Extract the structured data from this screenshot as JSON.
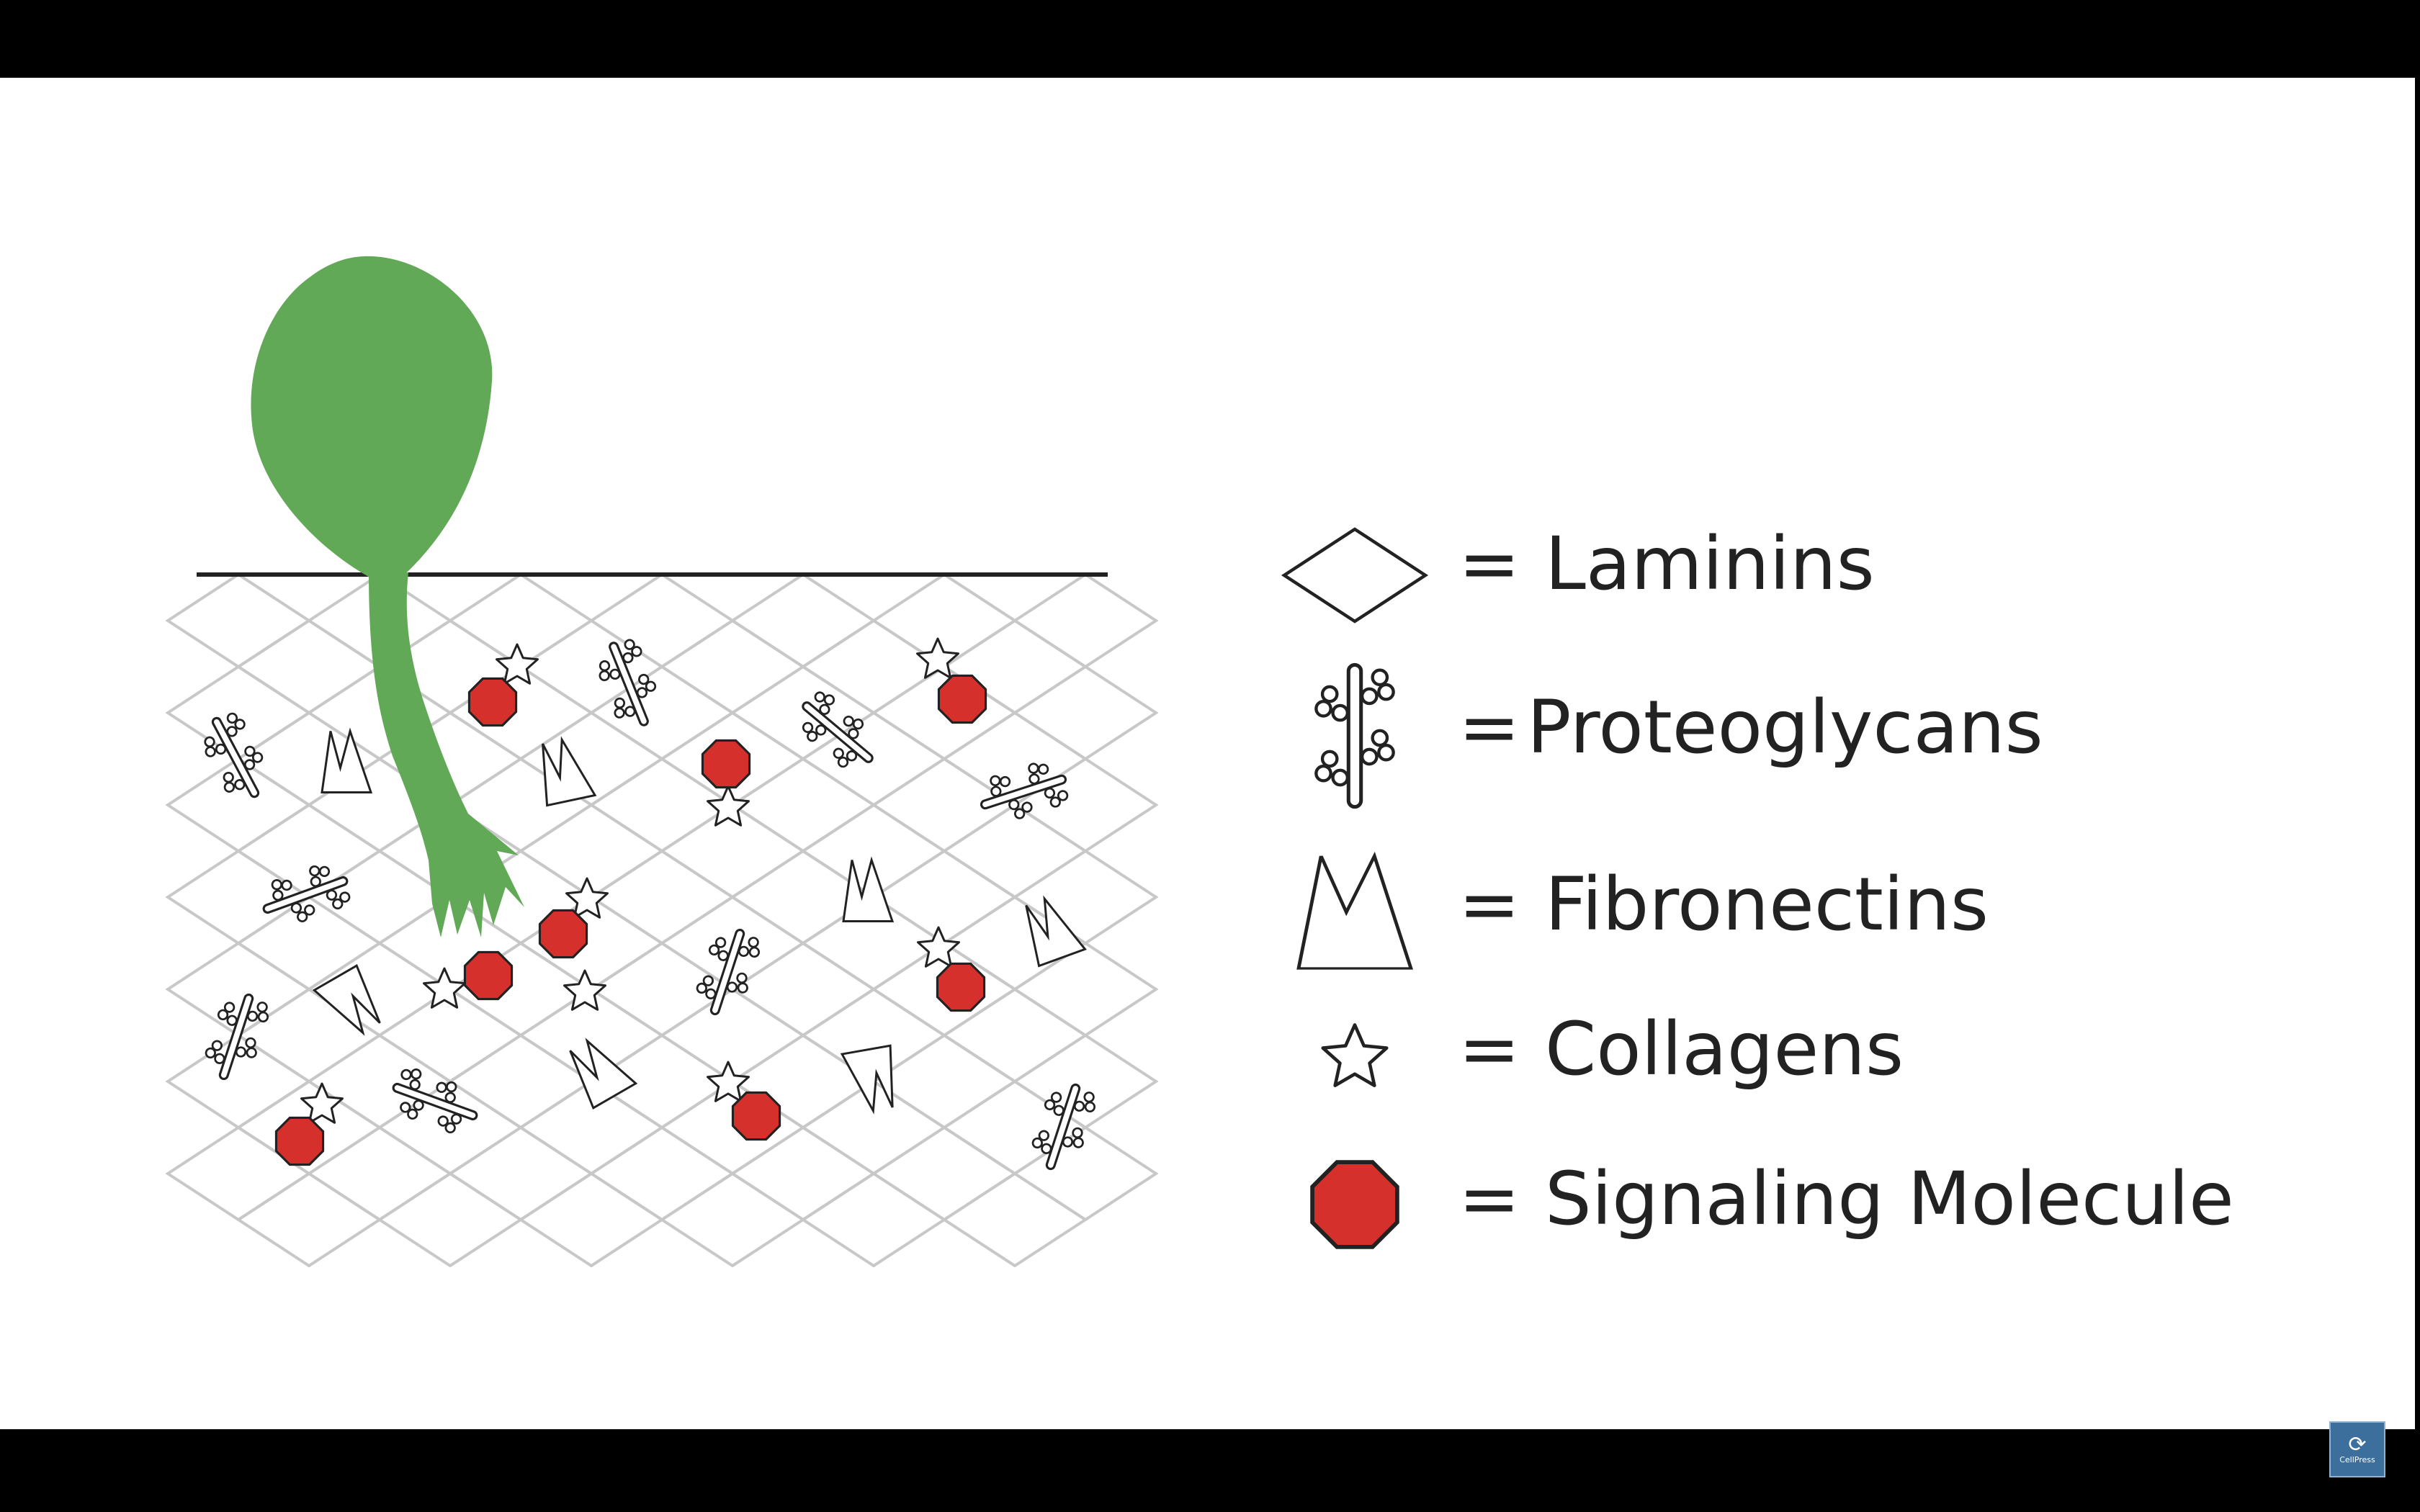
{
  "legend": {
    "equals": "=",
    "items": [
      {
        "label": "Laminins",
        "icon": "laminin-diamond-icon"
      },
      {
        "label": "Proteoglycans",
        "icon": "proteoglycan-icon"
      },
      {
        "label": "Fibronectins",
        "icon": "fibronectin-icon"
      },
      {
        "label": "Collagens",
        "icon": "collagen-star-icon"
      },
      {
        "label": "Signaling Molecule",
        "icon": "signaling-molecule-octagon-icon"
      }
    ]
  },
  "colors": {
    "cell": "#62a957",
    "signaling": "#d6302c",
    "mesh": "#c8c8c8",
    "outline": "#222222",
    "background": "#ffffff",
    "letterbox": "#000000"
  },
  "watermark": {
    "glyph": "⟳",
    "text": "CellPress"
  }
}
